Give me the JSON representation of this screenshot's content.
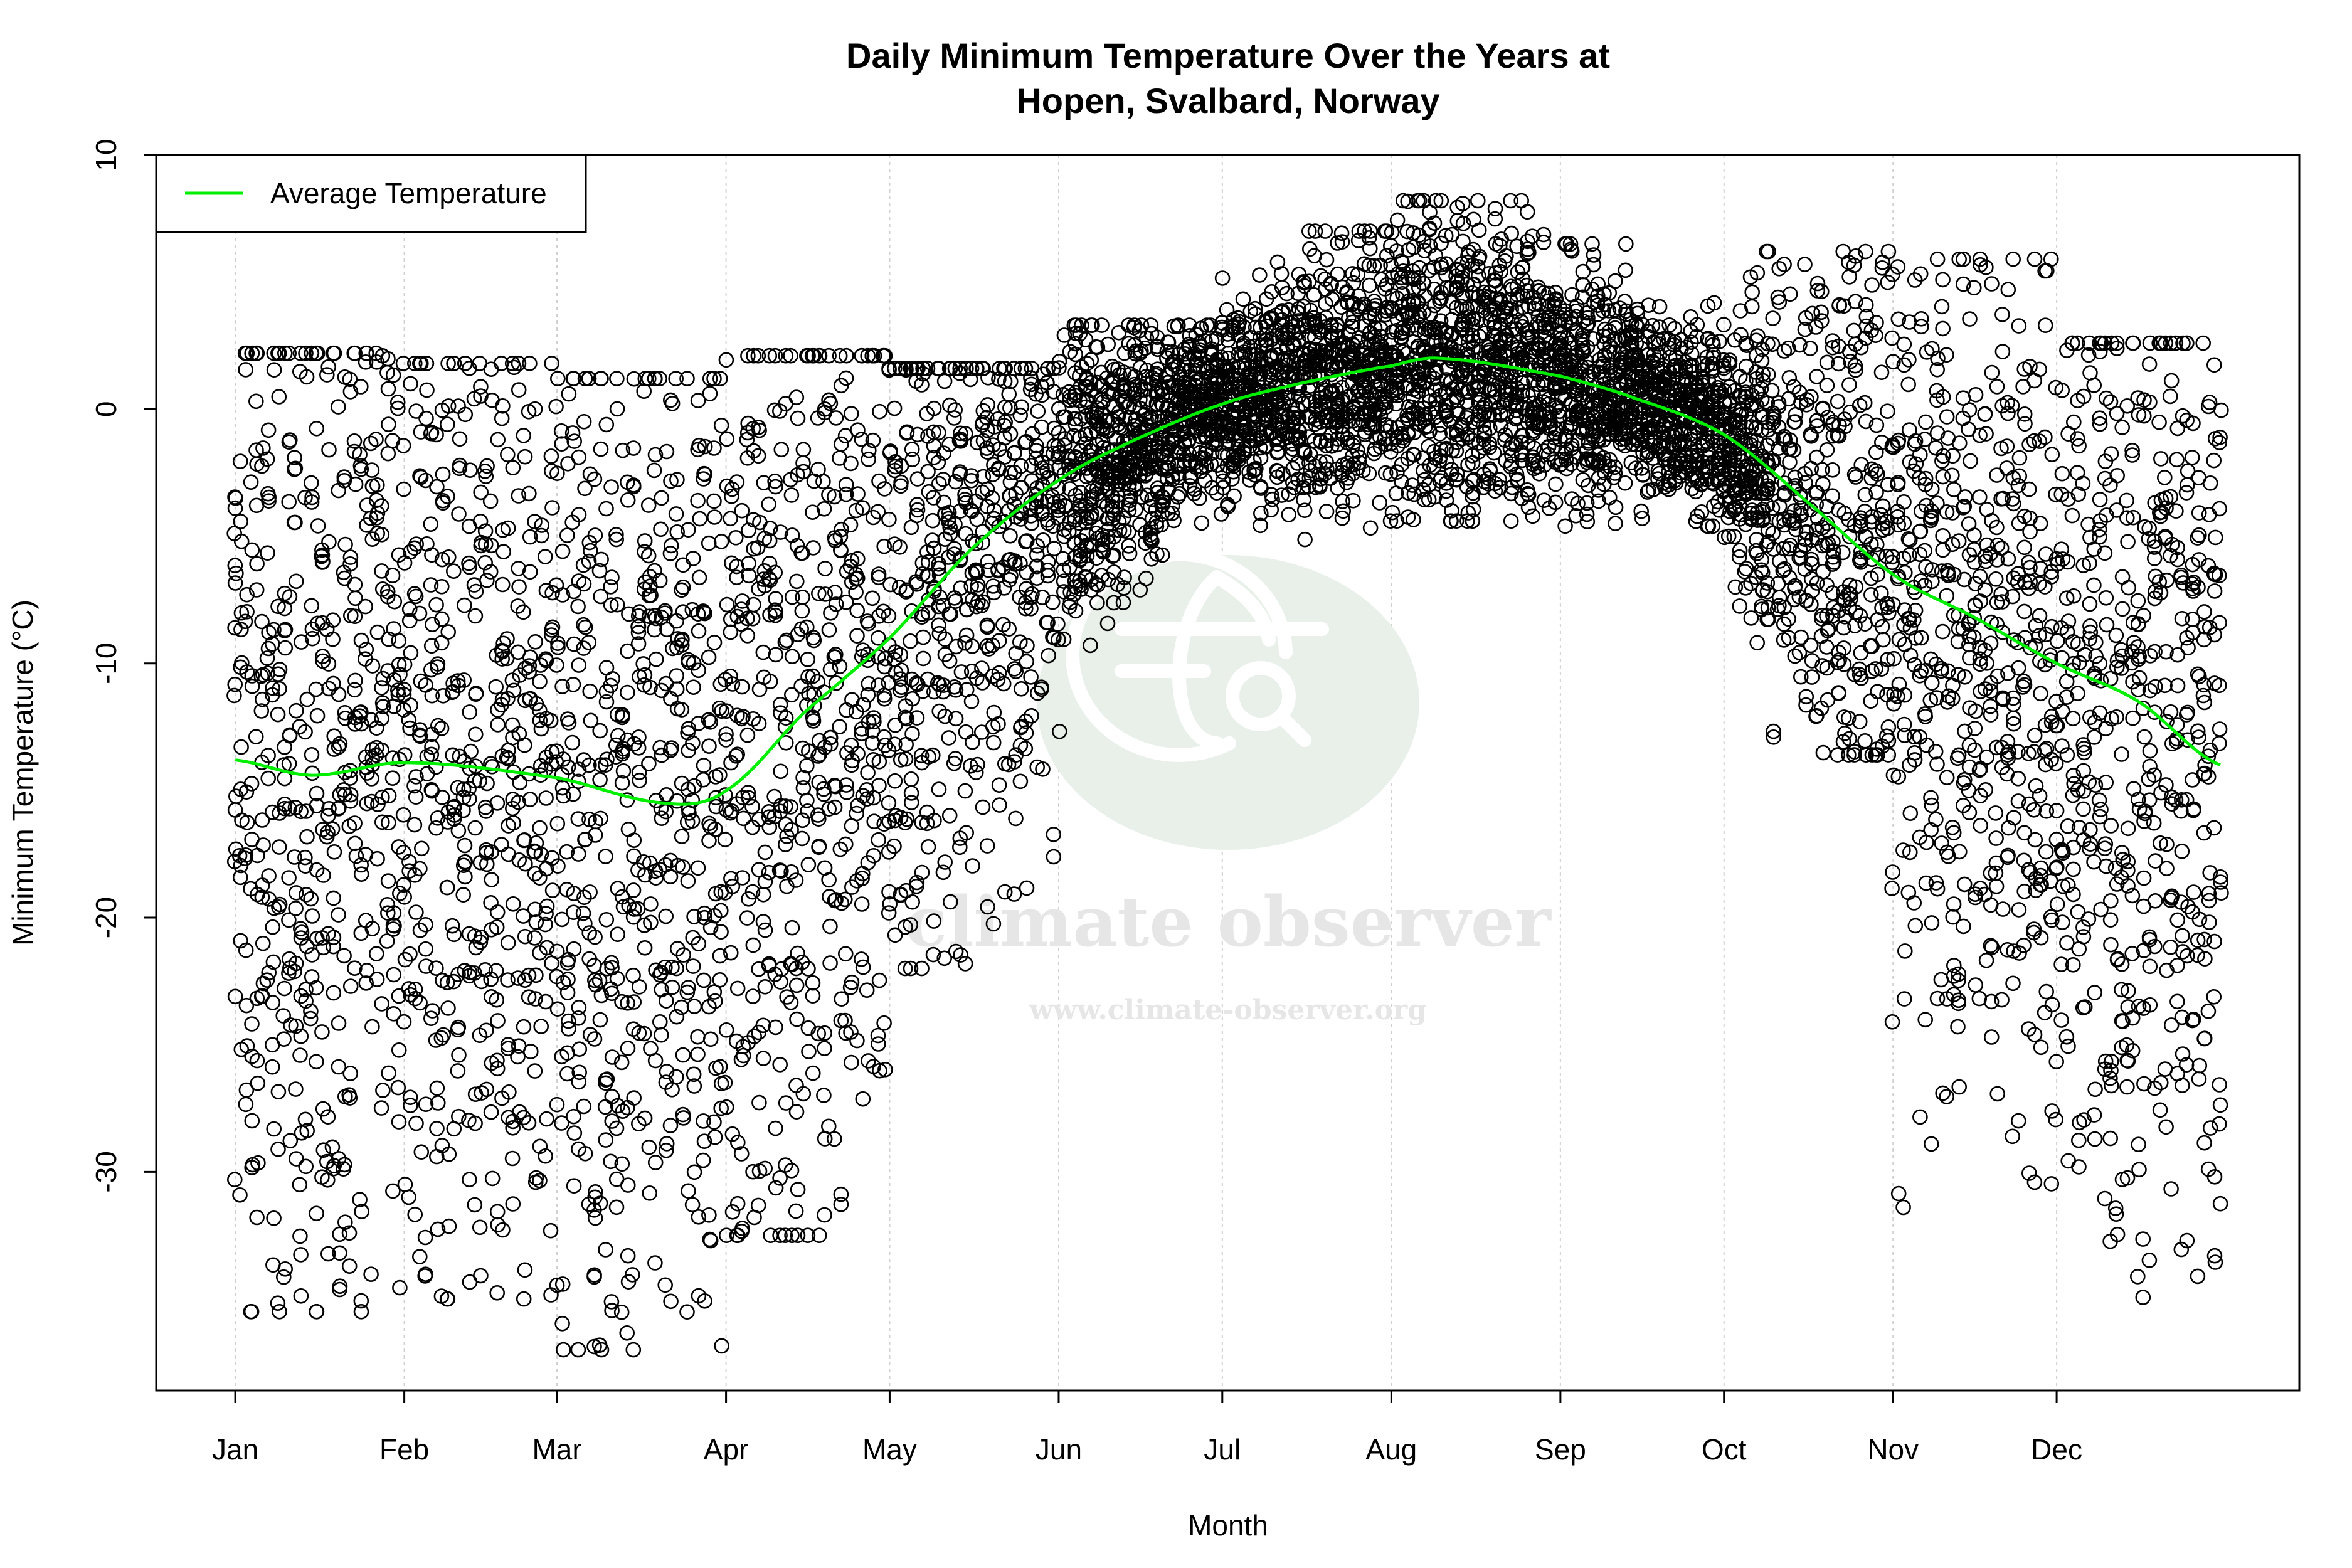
{
  "chart_data": {
    "type": "scatter",
    "title": "Daily Minimum Temperature Over the Years at",
    "subtitle": "Hopen, Svalbard, Norway",
    "xlabel": "Month",
    "ylabel": "Minimum Temperature (°C)",
    "xlim_day_of_year": [
      -13.5,
      379.5
    ],
    "ylim": [
      -38.6,
      10
    ],
    "y_ticks": [
      10,
      0,
      -10,
      -20,
      -30
    ],
    "x_ticks": [
      {
        "label": "Jan",
        "day": 1
      },
      {
        "label": "Feb",
        "day": 32
      },
      {
        "label": "Mar",
        "day": 60
      },
      {
        "label": "Apr",
        "day": 91
      },
      {
        "label": "May",
        "day": 121
      },
      {
        "label": "Jun",
        "day": 152
      },
      {
        "label": "Jul",
        "day": 182
      },
      {
        "label": "Aug",
        "day": 213
      },
      {
        "label": "Sep",
        "day": 244
      },
      {
        "label": "Oct",
        "day": 274
      },
      {
        "label": "Nov",
        "day": 305
      },
      {
        "label": "Dec",
        "day": 335
      }
    ],
    "grid": "vertical dotted at month ticks",
    "legend": {
      "position": "top-left",
      "entries": [
        {
          "label": "Average Temperature",
          "color": "#00ee00"
        }
      ]
    },
    "average_curve": {
      "name": "Average Temperature",
      "color": "#00ee00",
      "day": [
        1,
        15,
        32,
        60,
        80,
        91,
        105,
        121,
        136,
        152,
        166,
        182,
        196,
        213,
        222,
        244,
        258,
        274,
        289,
        305,
        320,
        335,
        350,
        365
      ],
      "value": [
        -13.8,
        -14.4,
        -13.9,
        -14.5,
        -15.5,
        -15.0,
        -12.0,
        -9.0,
        -5.5,
        -2.8,
        -1.2,
        0.2,
        1.0,
        1.7,
        2.0,
        1.3,
        0.4,
        -1.0,
        -3.6,
        -6.5,
        -8.2,
        -10.0,
        -11.5,
        -14.0
      ]
    },
    "observations": {
      "marker": "open circle",
      "color": "#000000",
      "monthly_range": [
        {
          "month": "Jan",
          "min": -35.5,
          "max": 2.2
        },
        {
          "month": "Feb",
          "min": -35.0,
          "max": 1.8
        },
        {
          "month": "Mar",
          "min": -37.0,
          "max": 1.2
        },
        {
          "month": "Apr",
          "min": -32.5,
          "max": 2.1
        },
        {
          "month": "May",
          "min": -22.0,
          "max": 1.6
        },
        {
          "month": "Jun",
          "min": -15.0,
          "max": 3.3
        },
        {
          "month": "Jul",
          "min": -5.5,
          "max": 7.0
        },
        {
          "month": "Aug",
          "min": -4.4,
          "max": 8.2
        },
        {
          "month": "Sep",
          "min": -4.6,
          "max": 6.5
        },
        {
          "month": "Oct",
          "min": -13.6,
          "max": 6.2
        },
        {
          "month": "Nov",
          "min": -31.7,
          "max": 5.9
        },
        {
          "month": "Dec",
          "min": -35.6,
          "max": 2.6
        }
      ]
    }
  },
  "watermark": {
    "name": "climate observer",
    "url": "www.climate-observer.org",
    "circle_color": "#e9f0e9"
  }
}
